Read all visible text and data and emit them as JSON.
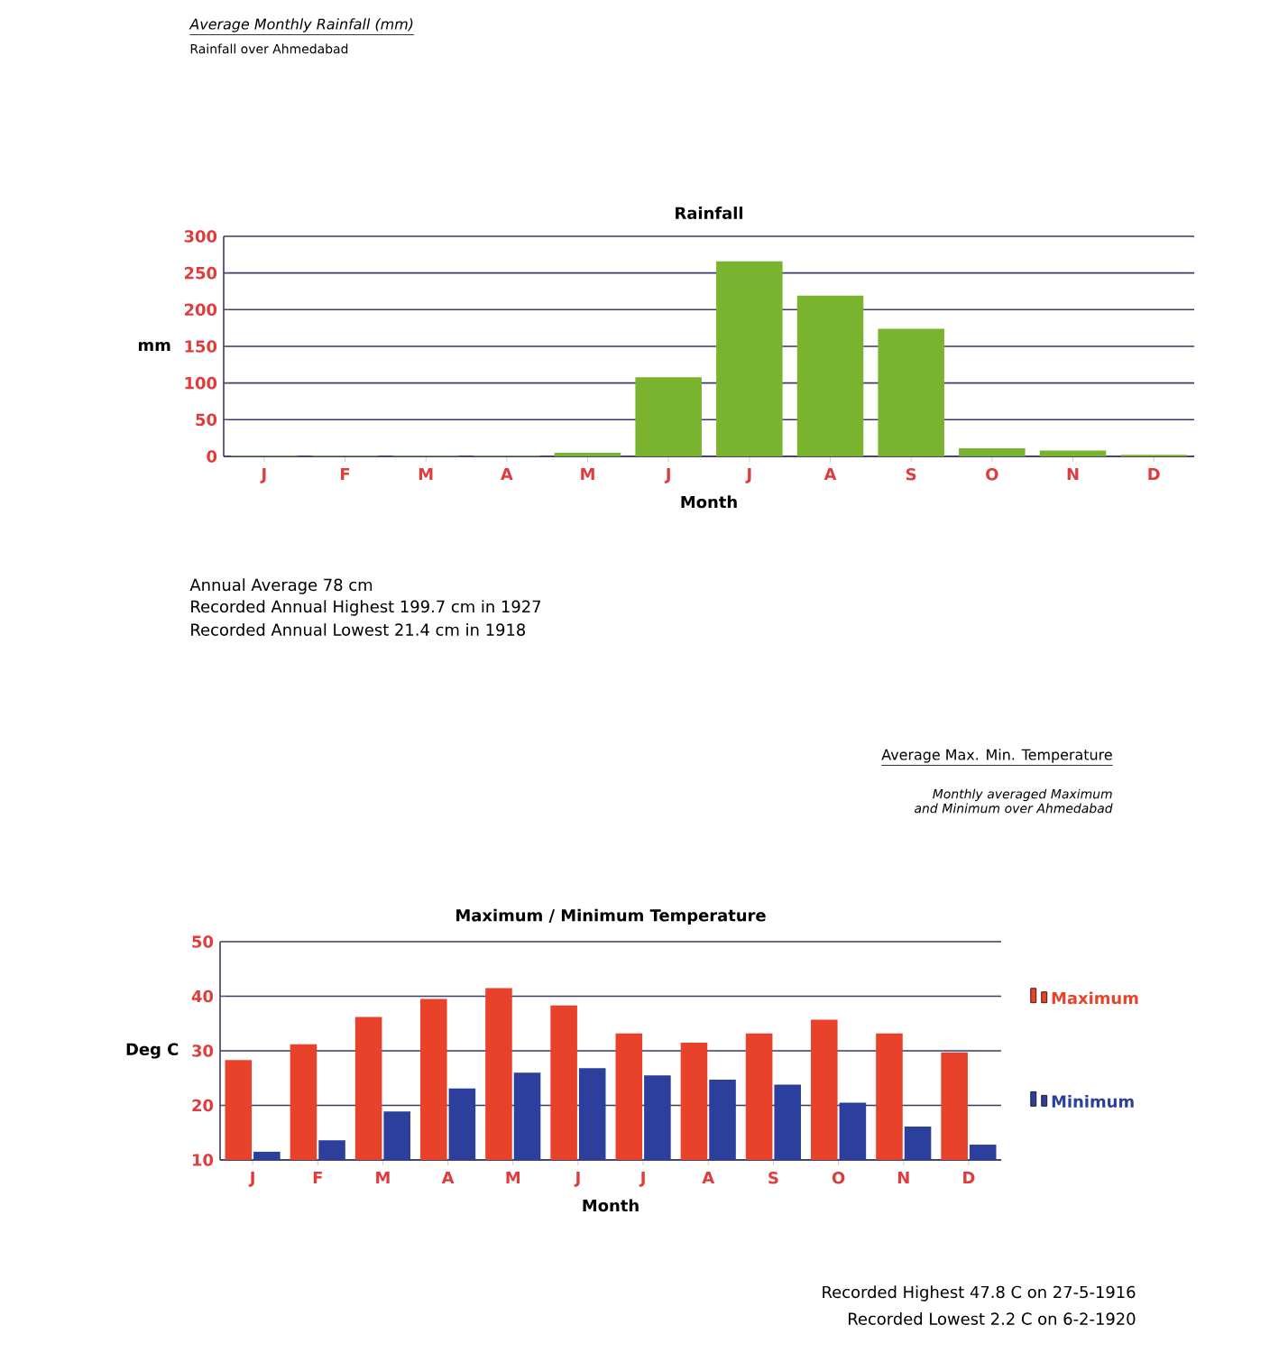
{
  "chart_data": [
    {
      "type": "bar",
      "title": "Rainfall",
      "xlabel": "Month",
      "ylabel": "mm",
      "categories": [
        "J",
        "F",
        "M",
        "A",
        "M",
        "J",
        "J",
        "A",
        "S",
        "O",
        "N",
        "D"
      ],
      "values": [
        1,
        1,
        1,
        1,
        5,
        108,
        266,
        219,
        174,
        11,
        8,
        2
      ],
      "color": "#7ab32e",
      "ylim": [
        0,
        300
      ],
      "yticks": [
        0,
        50,
        100,
        150,
        200,
        250,
        300
      ],
      "grid": "y",
      "annotations": [
        "Average Monthly Rainfall (mm)",
        "Rainfall over Ahmedabad",
        "Annual Average 78 cm",
        "Recorded Annual Highest 199.7 cm in 1927",
        "Recorded Annual Lowest 21.4 cm in 1918"
      ]
    },
    {
      "type": "bar",
      "title": "Maximum / Minimum Temperature",
      "xlabel": "Month",
      "ylabel": "Deg C",
      "categories": [
        "J",
        "F",
        "M",
        "A",
        "M",
        "J",
        "J",
        "A",
        "S",
        "O",
        "N",
        "D"
      ],
      "series": [
        {
          "name": "Maximum",
          "color": "#e8432a",
          "values": [
            28.3,
            31.2,
            36.2,
            39.5,
            41.5,
            38.3,
            33.2,
            31.5,
            33.2,
            35.7,
            33.2,
            29.7
          ]
        },
        {
          "name": "Minimum",
          "color": "#2c3f9c",
          "values": [
            11.5,
            13.6,
            18.9,
            23.1,
            26,
            26.8,
            25.5,
            24.7,
            23.8,
            20.5,
            16.1,
            12.8
          ]
        }
      ],
      "ylim": [
        10,
        50
      ],
      "yticks": [
        10,
        20,
        30,
        40,
        50
      ],
      "grid": "y",
      "legend": "right",
      "annotations": [
        "Average Max. Min. Temperature",
        "Monthly averaged Maximum and Minimum over Ahmedabad",
        "Recorded Highest 47.8 C on 27-5-1916",
        "Recorded Lowest 2.2 C on 6-2-1920"
      ]
    }
  ]
}
